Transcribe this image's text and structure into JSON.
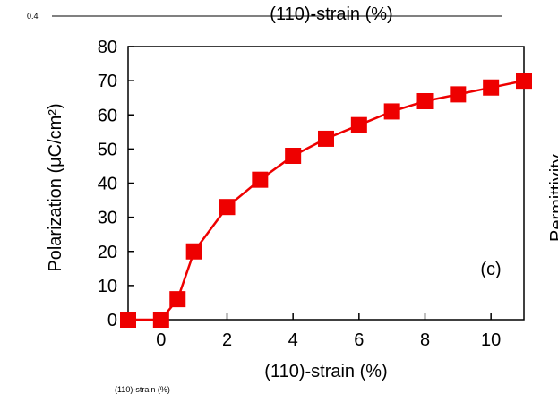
{
  "fragments": {
    "top_left_tick": "0.4",
    "top_xlabel": "(110)-strain (%)",
    "right_ylabel": "Permittivity",
    "bottom_fragment": "(110)-strain (%)"
  },
  "colors": {
    "series": "#ee0000",
    "axis": "#000000"
  },
  "chart_data": {
    "type": "line",
    "title": "",
    "xlabel": "(110)-strain (%)",
    "ylabel": "Polarization (μC/cm²)",
    "xlim": [
      -1,
      11
    ],
    "ylim": [
      0,
      80
    ],
    "xticks": [
      0,
      2,
      4,
      6,
      8,
      10
    ],
    "yticks": [
      0,
      10,
      20,
      30,
      40,
      50,
      60,
      70,
      80
    ],
    "panel_label": "(c)",
    "grid": false,
    "markers": "square",
    "series": [
      {
        "x": [
          -1,
          0,
          0.5,
          1,
          2,
          3,
          4,
          5,
          6,
          7,
          8,
          9,
          10,
          11
        ],
        "y": [
          0,
          0,
          6,
          20,
          33,
          41,
          48,
          53,
          57,
          61,
          64,
          66,
          68,
          70
        ]
      }
    ]
  }
}
